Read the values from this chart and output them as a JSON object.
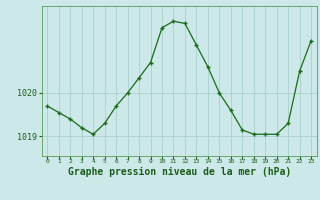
{
  "hours": [
    0,
    1,
    2,
    3,
    4,
    5,
    6,
    7,
    8,
    9,
    10,
    11,
    12,
    13,
    14,
    15,
    16,
    17,
    18,
    19,
    20,
    21,
    22,
    23
  ],
  "pressure": [
    1019.7,
    1019.55,
    1019.4,
    1019.2,
    1019.05,
    1019.3,
    1019.7,
    1020.0,
    1020.35,
    1020.7,
    1021.5,
    1021.65,
    1021.6,
    1021.1,
    1020.6,
    1020.0,
    1019.6,
    1019.15,
    1019.05,
    1019.05,
    1019.05,
    1019.3,
    1020.5,
    1021.2
  ],
  "line_color": "#1a6b1a",
  "marker": "+",
  "bg_color": "#cce8e8",
  "grid_color": "#aacfcf",
  "title": "Graphe pression niveau de la mer (hPa)",
  "title_color": "#1a5c1a",
  "title_fontsize": 7.0,
  "ylabel_ticks": [
    1019,
    1020
  ],
  "xlim": [
    -0.5,
    23.5
  ],
  "ylim": [
    1018.55,
    1022.0
  ],
  "tick_color": "#1a5c1a",
  "spine_color": "#5a9a5a"
}
